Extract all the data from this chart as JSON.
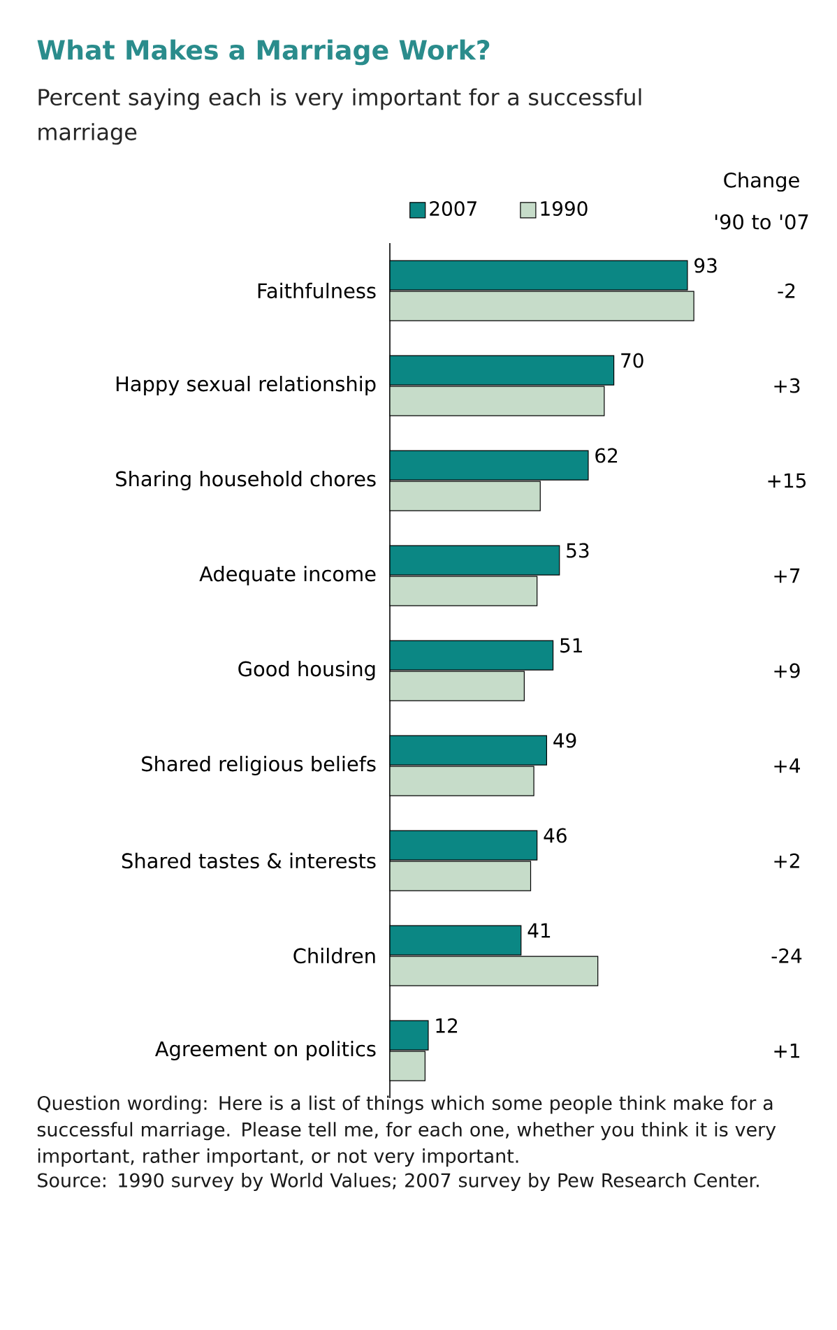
{
  "chart_data": {
    "type": "bar",
    "orientation": "horizontal",
    "title": "What Makes a Marriage Work?",
    "subtitle": "Percent saying each is very important for a successful marriage",
    "categories": [
      "Faithfulness",
      "Happy sexual relationship",
      "Sharing household chores",
      "Adequate income",
      "Good housing",
      "Shared religious beliefs",
      "Shared tastes & interests",
      "Children",
      "Agreement on politics"
    ],
    "series": [
      {
        "name": "2007",
        "color": "#0b8784",
        "values": [
          93,
          70,
          62,
          53,
          51,
          49,
          46,
          41,
          12
        ],
        "value_labels": [
          "93",
          "70",
          "62",
          "53",
          "51",
          "49",
          "46",
          "41",
          "12"
        ]
      },
      {
        "name": "1990",
        "color": "#c6dcc9",
        "values": [
          95,
          67,
          47,
          46,
          42,
          45,
          44,
          65,
          11
        ]
      }
    ],
    "legend": "top",
    "annotations": [
      "Change '90 to '07",
      "-2",
      "+3",
      "+15",
      "+7",
      "+9",
      "+4",
      "+2",
      "-24",
      "+1",
      "Question wording: Here is a list of things which some people think make for a successful marriage. Please tell me, for each one, whether you think it is very important, rather important, or not very important.",
      "Source: 1990 survey by World Values; 2007 survey by Pew Research Center."
    ]
  }
}
